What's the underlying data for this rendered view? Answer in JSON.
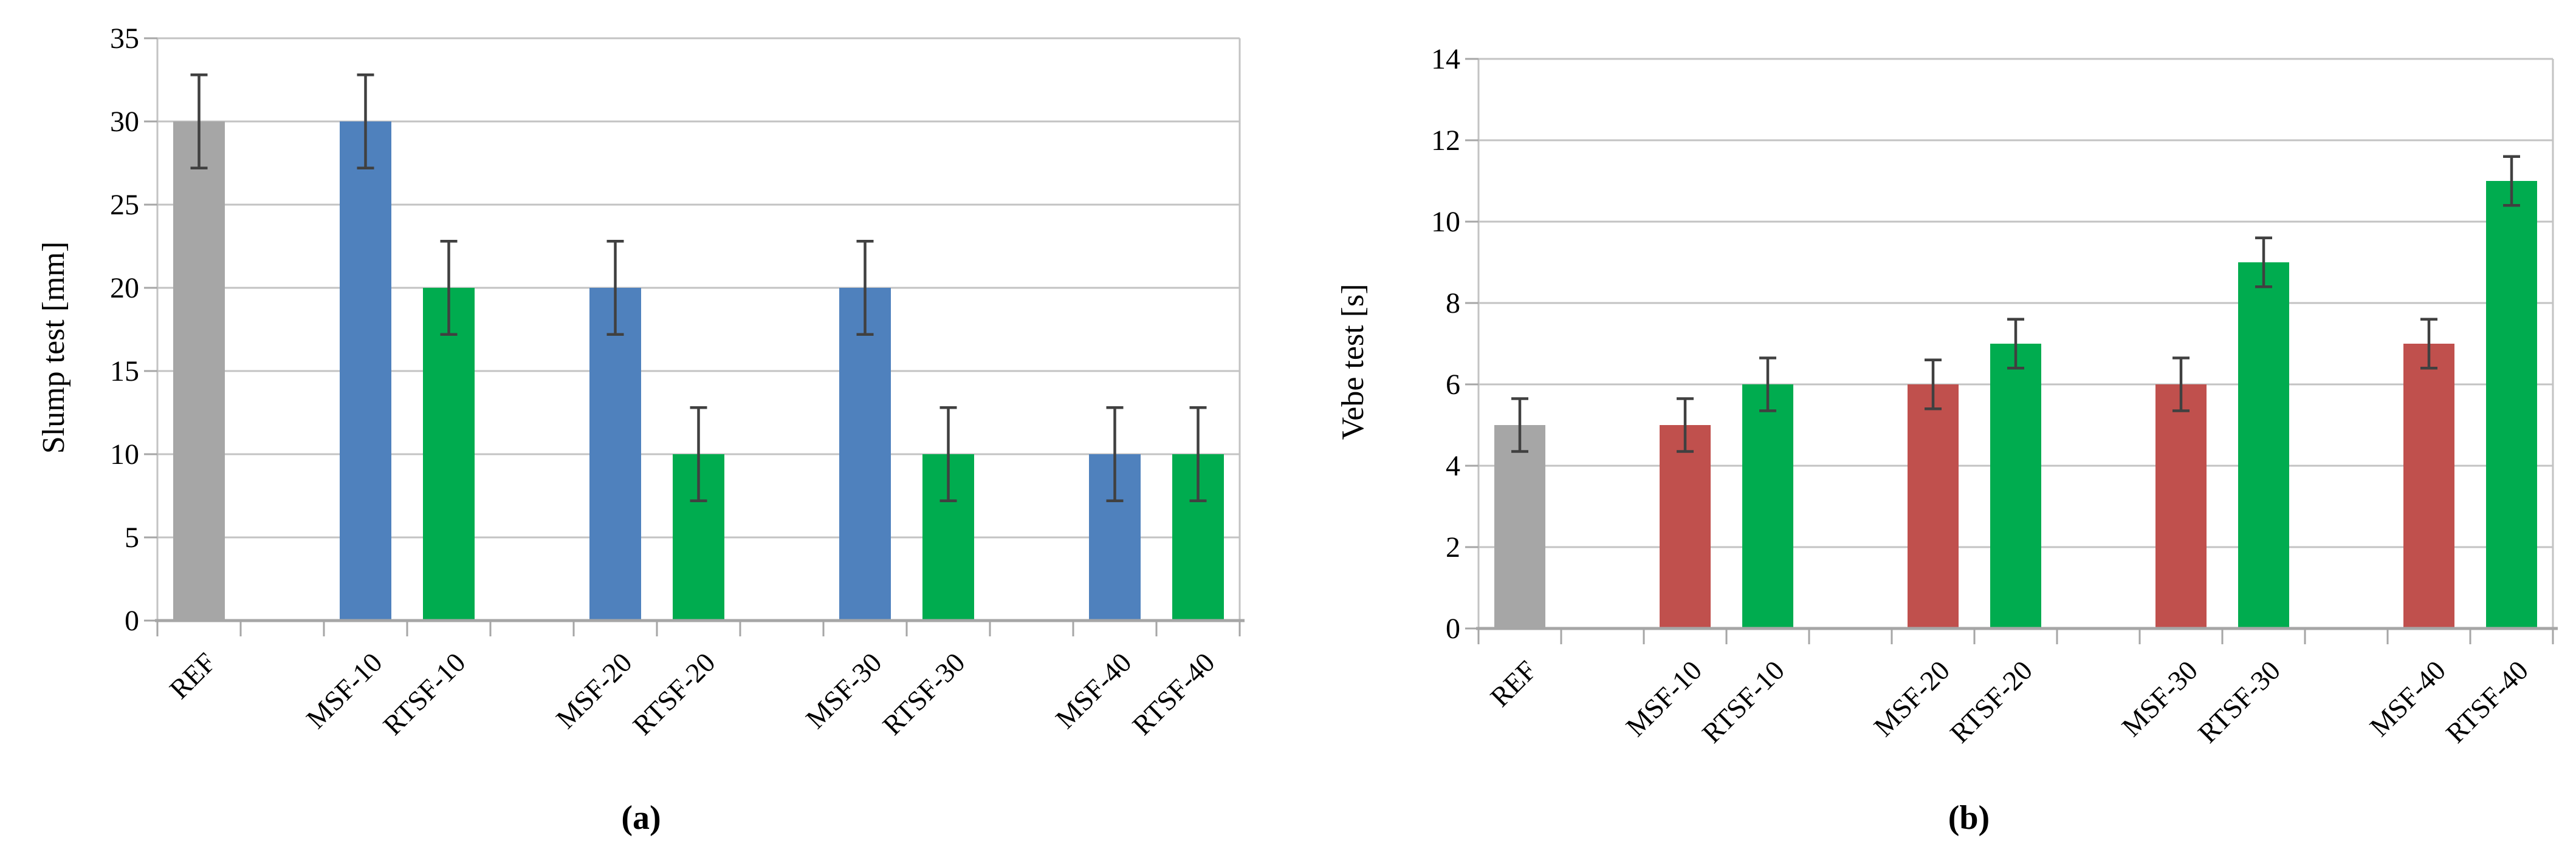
{
  "figure": {
    "background": "#FFFFFF",
    "description": "Two-panel bar chart figure with error bars",
    "panel_captions": [
      "(a)",
      "(b)"
    ]
  },
  "chart_data": [
    {
      "type": "bar",
      "panel": "a",
      "caption": "(a)",
      "title": "",
      "xlabel": "",
      "ylabel": "Slump test [mm]",
      "ylim": [
        0,
        35
      ],
      "ystep": 5,
      "yticks": [
        0,
        5,
        10,
        15,
        20,
        25,
        30,
        35
      ],
      "grid": true,
      "legend_position": "none",
      "categories": [
        "REF",
        "MSF-10",
        "RTSF-10",
        "MSF-20",
        "RTSF-20",
        "MSF-30",
        "RTSF-30",
        "MSF-40",
        "RTSF-40"
      ],
      "values": [
        30,
        30,
        20,
        20,
        10,
        20,
        10,
        10,
        10
      ],
      "errors": [
        2.8,
        2.8,
        2.8,
        2.8,
        2.8,
        2.8,
        2.8,
        2.8,
        2.8
      ],
      "bar_color_names": [
        "gray",
        "blue",
        "green",
        "blue",
        "green",
        "blue",
        "green",
        "blue",
        "green"
      ]
    },
    {
      "type": "bar",
      "panel": "b",
      "caption": "(b)",
      "title": "",
      "xlabel": "",
      "ylabel": "Vebe test [s]",
      "ylim": [
        0,
        14
      ],
      "ystep": 2,
      "yticks": [
        0,
        2,
        4,
        6,
        8,
        10,
        12,
        14
      ],
      "grid": true,
      "legend_position": "none",
      "categories": [
        "REF",
        "MSF-10",
        "RTSF-10",
        "MSF-20",
        "RTSF-20",
        "MSF-30",
        "RTSF-30",
        "MSF-40",
        "RTSF-40"
      ],
      "values": [
        5,
        5,
        6,
        6,
        7,
        6,
        9,
        7,
        11
      ],
      "errors": [
        0.65,
        0.65,
        0.65,
        0.6,
        0.6,
        0.65,
        0.6,
        0.6,
        0.6
      ],
      "bar_color_names": [
        "gray",
        "red",
        "green",
        "red",
        "green",
        "red",
        "green",
        "red",
        "green"
      ]
    }
  ],
  "colors": {
    "gray": "#A6A6A6",
    "blue": "#4F81BD",
    "red": "#C0504D",
    "green": "#00AC4F",
    "gridline": "#C3C3C3",
    "plot_border": "#C3C3C3",
    "axis_line": "#A6A6A6",
    "tick_mark": "#A6A6A6",
    "error_bar": "#404040",
    "text": "#000000"
  }
}
